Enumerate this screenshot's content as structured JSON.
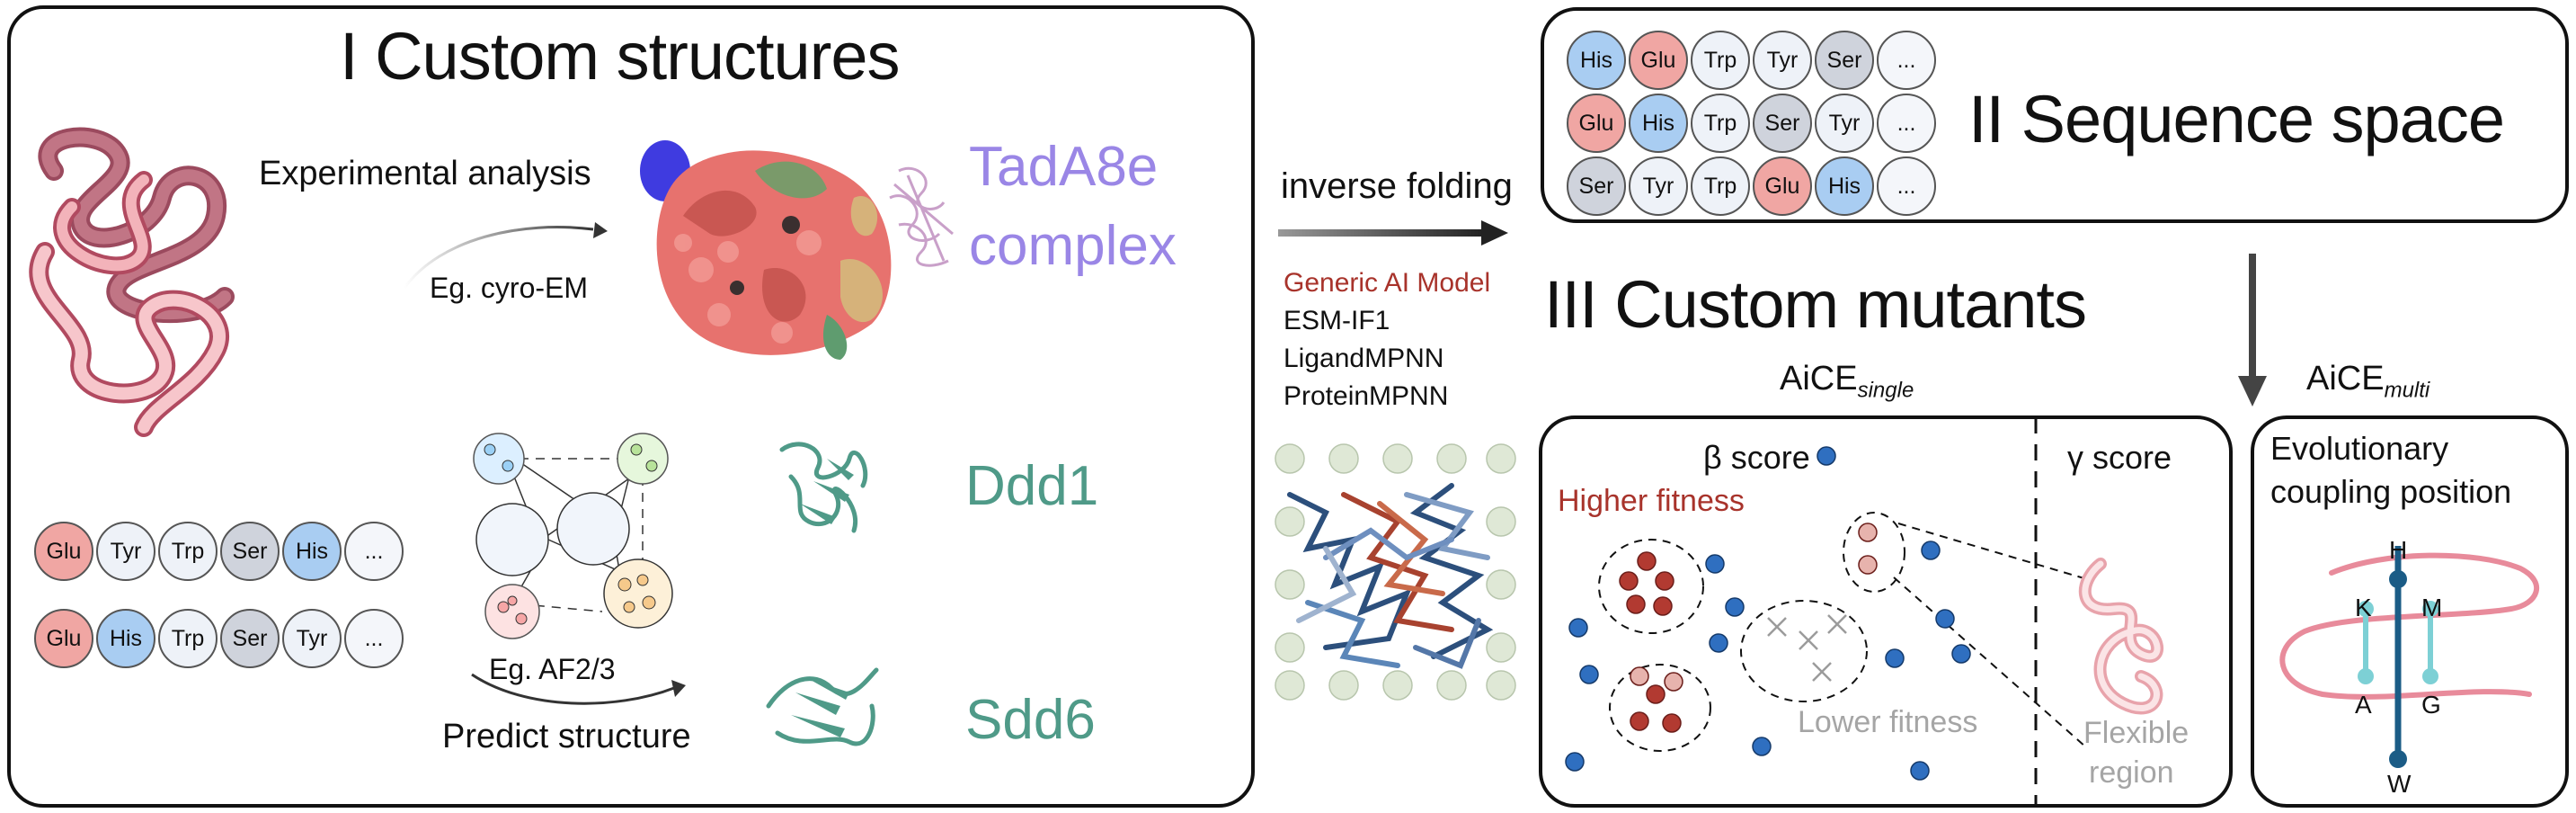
{
  "panel1": {
    "title": "I Custom structures",
    "experimental_label": "Experimental analysis",
    "cryo_label": "Eg. cyro-EM",
    "tada_label_line1": "TadA8e",
    "tada_label_line2": "complex",
    "ddd1_label": "Ddd1",
    "sdd6_label": "Sdd6",
    "af_label": "Eg. AF2/3",
    "predict_label": "Predict structure",
    "seq_row1": [
      "Glu",
      "Tyr",
      "Trp",
      "Ser",
      "His",
      "..."
    ],
    "seq_row2": [
      "Glu",
      "His",
      "Trp",
      "Ser",
      "Tyr",
      "..."
    ]
  },
  "middle": {
    "inverse_label": "inverse folding",
    "models": [
      "Generic AI Model",
      "ESM-IF1",
      "LigandMPNN",
      "ProteinMPNN"
    ]
  },
  "panel2": {
    "title": "II Sequence space",
    "row1": [
      "His",
      "Glu",
      "Trp",
      "Tyr",
      "Ser",
      "..."
    ],
    "row2": [
      "Glu",
      "His",
      "Trp",
      "Ser",
      "Tyr",
      "..."
    ],
    "row3": [
      "Ser",
      "Tyr",
      "Trp",
      "Glu",
      "His",
      "..."
    ]
  },
  "panel3": {
    "title": "III Custom mutants",
    "aice_single_main": "AiCE",
    "aice_single_sub": "single",
    "beta_label": "β score",
    "gamma_label": "γ score",
    "higher_label": "Higher fitness",
    "lower_label": "Lower fitness",
    "flexible_line1": "Flexible",
    "flexible_line2": "region"
  },
  "panel4": {
    "aice_multi_main": "AiCE",
    "aice_multi_sub": "multi",
    "title_line1": "Evolutionary",
    "title_line2": "coupling position",
    "letters": [
      "H",
      "K",
      "M",
      "A",
      "G",
      "W"
    ]
  },
  "colors": {
    "his": "#a9cdf2",
    "glu": "#f0a6a3",
    "ser": "#cfd3dc",
    "tada_purple": "#9a86e6",
    "teal": "#4f9a88",
    "dark_red": "#a8332b",
    "blue_dot": "#2f6fc0",
    "coupling_teal": "#7dd0d5"
  }
}
